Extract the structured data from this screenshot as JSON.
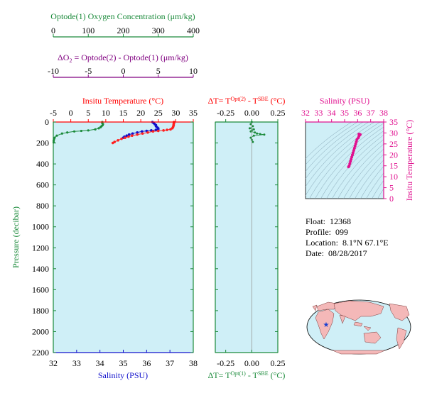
{
  "chart_data": {
    "type": "scatter",
    "colors": {
      "oxygen": "#1a8a3a",
      "delta": "#800080",
      "temperature_axis": "#ff0000",
      "temperature": "#ff2020",
      "salinity": "#1010cc",
      "ts_diagram": "#e0108f",
      "panel_bg": "#cfeff7"
    },
    "oxygen_axis": {
      "title": "Optode(1) Oxygen Concentration (μm/kg)",
      "ticks": [
        "0",
        "100",
        "200",
        "300",
        "400"
      ],
      "range": [
        0,
        400
      ]
    },
    "delta_o2_axis": {
      "title_prefix": "ΔO",
      "title_sub": "2",
      "title_rest": " = Optode(2) - Optode(1)   (μm/kg)",
      "ticks": [
        "-10",
        "-5",
        "0",
        "5",
        "10"
      ],
      "range": [
        -10,
        10
      ]
    },
    "temperature_axis": {
      "title": "Insitu Temperature (°C)",
      "ticks": [
        "-5",
        "0",
        "5",
        "10",
        "15",
        "20",
        "25",
        "30",
        "35"
      ],
      "range": [
        -5,
        35
      ]
    },
    "salinity_axis": {
      "title": "Salinity (PSU)",
      "ticks": [
        "32",
        "33",
        "34",
        "35",
        "36",
        "37",
        "38"
      ],
      "range": [
        32,
        38
      ]
    },
    "pressure_axis": {
      "title": "Pressure (decibar)",
      "ticks": [
        "0",
        "200",
        "400",
        "600",
        "800",
        "1000",
        "1200",
        "1400",
        "1600",
        "1800",
        "2000",
        "2200"
      ],
      "range": [
        0,
        2200
      ]
    },
    "delta_t_axis": {
      "top_title_a": "ΔT= T",
      "top_title_sup": "Opt(2)",
      "top_title_b": " - T",
      "top_title_sup2": "SBE",
      "top_title_c": " (°C)",
      "bottom_title_a": "ΔT= T",
      "bottom_title_sup": "Opt(1)",
      "bottom_title_b": " - T",
      "bottom_title_sup2": "SBE",
      "bottom_title_c": " (°C)",
      "ticks": [
        "-0.25",
        "0.00",
        "0.25"
      ],
      "range": [
        -0.35,
        0.25
      ]
    },
    "ts_diagram": {
      "x_title": "Salinity (PSU)",
      "x_ticks": [
        "32",
        "33",
        "34",
        "35",
        "36",
        "37",
        "38"
      ],
      "x_range": [
        32,
        38
      ],
      "y_title": "Insitu Temperature (°C)",
      "y_ticks": [
        "0",
        "5",
        "10",
        "15",
        "20",
        "25",
        "30",
        "35"
      ],
      "y_range": [
        0,
        35
      ],
      "points": [
        [
          36.1,
          29.5
        ],
        [
          36.2,
          29.3
        ],
        [
          36.15,
          29.0
        ],
        [
          36.1,
          28.5
        ],
        [
          36.05,
          27.8
        ],
        [
          35.95,
          27.0
        ],
        [
          35.9,
          26.0
        ],
        [
          35.85,
          25.0
        ],
        [
          35.8,
          24.0
        ],
        [
          35.75,
          23.0
        ],
        [
          35.7,
          22.0
        ],
        [
          35.65,
          21.0
        ],
        [
          35.6,
          20.0
        ],
        [
          35.55,
          19.0
        ],
        [
          35.5,
          18.0
        ],
        [
          35.45,
          17.0
        ],
        [
          35.4,
          16.0
        ],
        [
          35.35,
          15.0
        ],
        [
          35.3,
          14.5
        ]
      ]
    },
    "oxygen_profile": [
      [
        140,
        0
      ],
      [
        140,
        10
      ],
      [
        142,
        20
      ],
      [
        141,
        30
      ],
      [
        138,
        40
      ],
      [
        135,
        50
      ],
      [
        130,
        60
      ],
      [
        120,
        70
      ],
      [
        100,
        80
      ],
      [
        80,
        85
      ],
      [
        60,
        90
      ],
      [
        40,
        100
      ],
      [
        25,
        110
      ],
      [
        10,
        130
      ],
      [
        4,
        150
      ],
      [
        2,
        165
      ],
      [
        1,
        180
      ],
      [
        1,
        195
      ]
    ],
    "temperature_profile": [
      [
        29.5,
        0
      ],
      [
        29.5,
        10
      ],
      [
        29.4,
        20
      ],
      [
        29.4,
        30
      ],
      [
        29.3,
        40
      ],
      [
        29.2,
        50
      ],
      [
        29.0,
        60
      ],
      [
        28.5,
        70
      ],
      [
        27.5,
        75
      ],
      [
        26.5,
        80
      ],
      [
        25.0,
        85
      ],
      [
        23.5,
        90
      ],
      [
        22.0,
        100
      ],
      [
        20.5,
        110
      ],
      [
        19.0,
        120
      ],
      [
        17.5,
        130
      ],
      [
        16.5,
        140
      ],
      [
        15.5,
        150
      ],
      [
        14.5,
        160
      ],
      [
        13.5,
        175
      ],
      [
        12.5,
        190
      ],
      [
        12.0,
        200
      ]
    ],
    "salinity_profile": [
      [
        36.25,
        0
      ],
      [
        36.3,
        10
      ],
      [
        36.35,
        20
      ],
      [
        36.4,
        30
      ],
      [
        36.4,
        40
      ],
      [
        36.45,
        50
      ],
      [
        36.5,
        60
      ],
      [
        36.5,
        70
      ],
      [
        36.4,
        75
      ],
      [
        36.2,
        80
      ],
      [
        36.0,
        85
      ],
      [
        35.8,
        90
      ],
      [
        35.6,
        100
      ],
      [
        35.4,
        110
      ],
      [
        35.25,
        120
      ],
      [
        35.15,
        130
      ],
      [
        35.05,
        140
      ],
      [
        35.0,
        150
      ]
    ],
    "delta_t_profile": [
      [
        0.0,
        0
      ],
      [
        -0.01,
        20
      ],
      [
        0.01,
        40
      ],
      [
        -0.02,
        60
      ],
      [
        0.02,
        70
      ],
      [
        0.0,
        80
      ],
      [
        -0.01,
        90
      ],
      [
        0.03,
        100
      ],
      [
        0.05,
        110
      ],
      [
        0.08,
        115
      ],
      [
        0.12,
        120
      ],
      [
        0.02,
        130
      ],
      [
        -0.01,
        150
      ],
      [
        0.0,
        170
      ],
      [
        0.01,
        190
      ]
    ]
  },
  "info": {
    "float_label": "Float:",
    "float_value": "12368",
    "profile_label": "Profile:",
    "profile_value": "099",
    "location_label": "Location:",
    "location_value": "8.1°N  67.1°E",
    "date_label": "Date:",
    "date_value": "08/28/2017"
  },
  "map": {
    "marker_icon": "star-icon"
  }
}
